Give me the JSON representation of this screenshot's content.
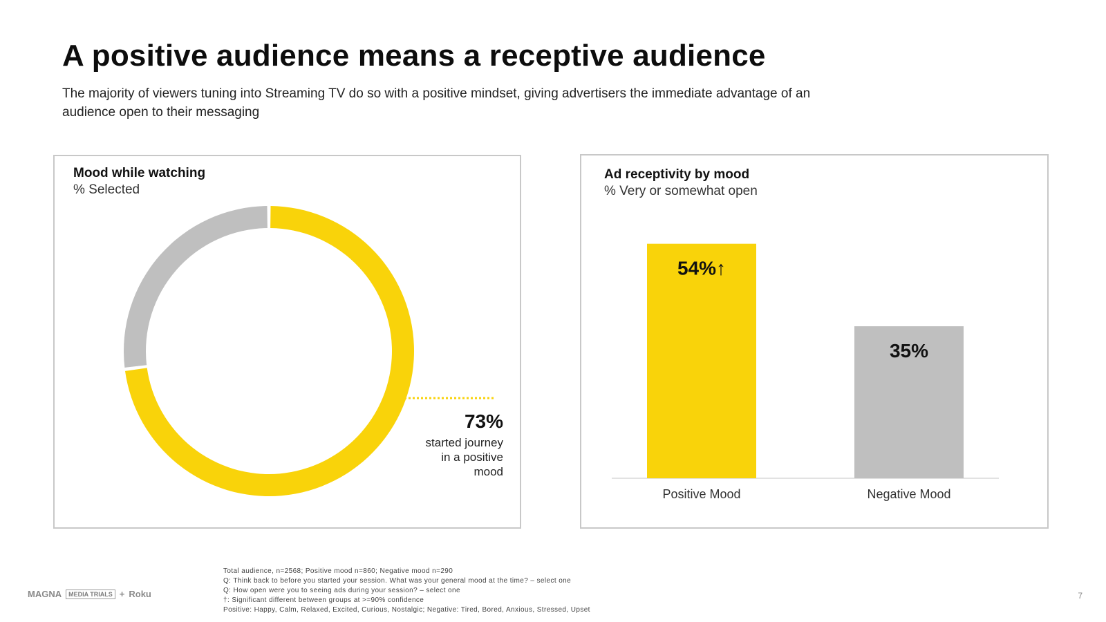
{
  "header": {
    "title": "A positive audience means a receptive audience",
    "subtitle": "The majority of viewers tuning into Streaming TV do so with a positive mindset, giving advertisers the immediate advantage of an audience open to their messaging"
  },
  "colors": {
    "yellow": "#f9d30a",
    "gray": "#bfbfbf"
  },
  "chart_data": [
    {
      "type": "pie",
      "title": "Mood while watching",
      "subtitle": "% Selected",
      "slices": [
        {
          "label": "Positive",
          "value": 73,
          "color": "#f9d30a"
        },
        {
          "label": "Negative",
          "value": 27,
          "color": "#bfbfbf"
        }
      ],
      "callout": {
        "value": "73%",
        "text": [
          "started journey",
          "in a positive",
          "mood"
        ]
      }
    },
    {
      "type": "bar",
      "title": "Ad receptivity by mood",
      "subtitle": "% Very or somewhat open",
      "categories": [
        "Positive Mood",
        "Negative Mood"
      ],
      "values": [
        54,
        35
      ],
      "data_labels": [
        "54%↑",
        "35%"
      ],
      "colors": [
        "#f9d30a",
        "#bfbfbf"
      ],
      "ylim": [
        0,
        60
      ],
      "grid": false
    }
  ],
  "footnotes": [
    "Total audience, n=2568; Positive mood n=860; Negative mood n=290",
    "Q: Think back to before you started your session. What was your general mood at the time? – select one",
    "Q: How open were you to seeing ads during your session? – select one",
    "†: Significant different between groups at >=90% confidence",
    "Positive: Happy, Calm, Relaxed, Excited, Curious, Nostalgic; Negative: Tired, Bored, Anxious, Stressed, Upset"
  ],
  "logos": {
    "magna": "MAGNA",
    "mediatrials": "MEDIA TRIALS",
    "plus": "+",
    "roku": "Roku"
  },
  "page_number": "7"
}
